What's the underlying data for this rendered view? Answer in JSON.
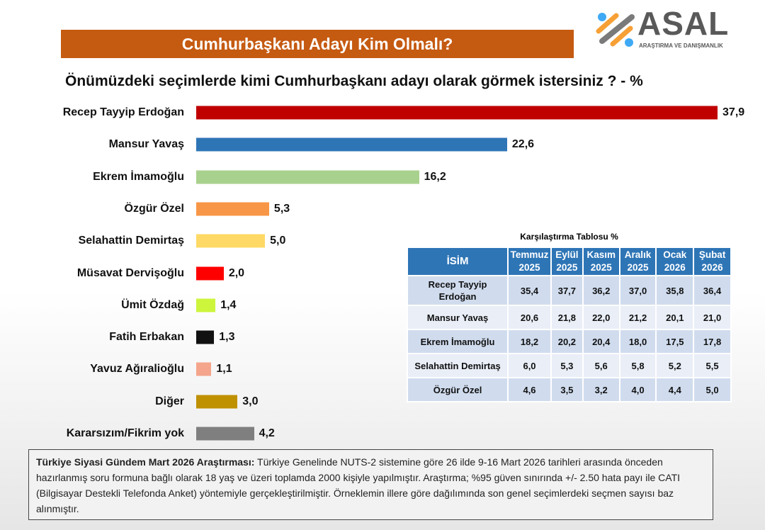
{
  "banner": "Cumhurbaşkanı Adayı Kim Olmalı?",
  "logo": {
    "text": "ASAL",
    "sub": "ARAŞTIRMA VE DANIŞMANLIK"
  },
  "chart_data": {
    "type": "bar",
    "orientation": "horizontal",
    "title": "Önümüzdeki seçimlerde kimi Cumhurbaşkanı adayı olarak görmek istersiniz ? - %",
    "categories": [
      "Recep Tayyip Erdoğan",
      "Mansur Yavaş",
      "Ekrem İmamoğlu",
      "Özgür Özel",
      "Selahattin Demirtaş",
      "Müsavat Dervişoğlu",
      "Ümit Özdağ",
      "Fatih Erbakan",
      "Yavuz Ağıralioğlu",
      "Diğer",
      "Kararsızım/Fikrim yok"
    ],
    "values": [
      37.9,
      22.6,
      16.2,
      5.3,
      5.0,
      2.0,
      1.4,
      1.3,
      1.1,
      3.0,
      4.2
    ],
    "labels": [
      "37,9",
      "22,6",
      "16,2",
      "5,3",
      "5,0",
      "2,0",
      "1,4",
      "1,3",
      "1,1",
      "3,0",
      "4,2"
    ],
    "colors": [
      "#c00000",
      "#2e75b6",
      "#a9d18e",
      "#f79646",
      "#ffd966",
      "#ff0000",
      "#ccf53c",
      "#111111",
      "#f4a58c",
      "#bf9000",
      "#7f7f7f"
    ]
  },
  "table": {
    "title": "Karşılaştırma Tablosu %",
    "headers": [
      "İSİM",
      "Temmuz 2025",
      "Eylül 2025",
      "Kasım 2025",
      "Aralık 2025",
      "Ocak 2026",
      "Şubat 2026"
    ],
    "rows": [
      [
        "Recep Tayyip Erdoğan",
        "35,4",
        "37,7",
        "36,2",
        "37,0",
        "35,8",
        "36,4"
      ],
      [
        "Mansur Yavaş",
        "20,6",
        "21,8",
        "22,0",
        "21,2",
        "20,1",
        "21,0"
      ],
      [
        "Ekrem İmamoğlu",
        "18,2",
        "20,2",
        "20,4",
        "18,0",
        "17,5",
        "17,8"
      ],
      [
        "Selahattin Demirtaş",
        "6,0",
        "5,3",
        "5,6",
        "5,8",
        "5,2",
        "5,5"
      ],
      [
        "Özgür Özel",
        "4,6",
        "3,5",
        "3,2",
        "4,0",
        "4,4",
        "5,0"
      ]
    ]
  },
  "footer": {
    "bold": "Türkiye Siyasi Gündem Mart 2026 Araştırması:",
    "text": " Türkiye Genelinde NUTS-2 sistemine göre 26 ilde 9-16 Mart 2026 tarihleri arasında önceden hazırlanmış soru formuna bağlı olarak 18 yaş ve üzeri toplamda 2000 kişiyle yapılmıştır. Araştırma; %95 güven sınırında +/- 2.50 hata payı ile CATI (Bilgisayar Destekli Telefonda Anket) yöntemiyle gerçekleştirilmiştir. Örneklemin illere göre dağılımında son genel seçimlerdeki seçmen sayısı baz alınmıştır."
  }
}
